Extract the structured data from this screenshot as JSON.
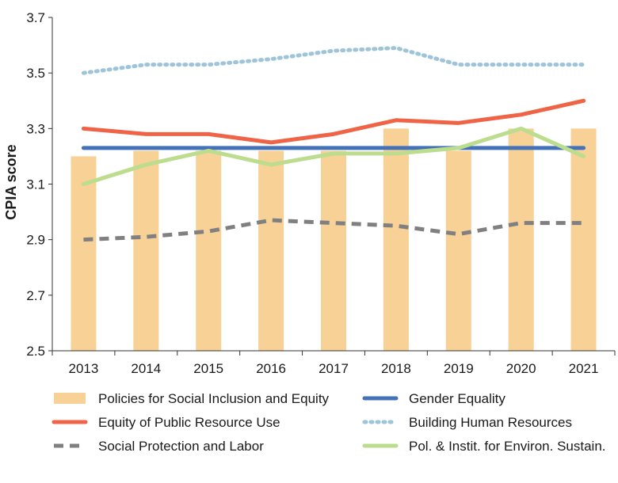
{
  "chart_data": {
    "type": "bar",
    "ylabel": "CPIA score",
    "ylim": [
      2.5,
      3.7
    ],
    "yticks": [
      2.5,
      2.7,
      2.9,
      3.1,
      3.3,
      3.5,
      3.7
    ],
    "categories": [
      "2013",
      "2014",
      "2015",
      "2016",
      "2017",
      "2018",
      "2019",
      "2020",
      "2021"
    ],
    "bar_series": {
      "name": "Policies for Social Inclusion and Equity",
      "color": "#f8d197",
      "values": [
        3.2,
        3.22,
        3.22,
        3.22,
        3.22,
        3.3,
        3.22,
        3.3,
        3.3
      ]
    },
    "line_series": [
      {
        "name": "Gender Equality",
        "color": "#4472b8",
        "style": "solid",
        "values": [
          3.23,
          3.23,
          3.23,
          3.23,
          3.23,
          3.23,
          3.23,
          3.23,
          3.23
        ]
      },
      {
        "name": "Equity of Public Resource Use",
        "color": "#ef6446",
        "style": "solid",
        "values": [
          3.3,
          3.28,
          3.28,
          3.25,
          3.28,
          3.33,
          3.32,
          3.35,
          3.4
        ]
      },
      {
        "name": "Building Human Resources",
        "color": "#9ec4da",
        "style": "dotted",
        "values": [
          3.5,
          3.53,
          3.53,
          3.55,
          3.58,
          3.59,
          3.53,
          3.53,
          3.53
        ]
      },
      {
        "name": "Social Protection and Labor",
        "color": "#808080",
        "style": "dashed",
        "values": [
          2.9,
          2.91,
          2.93,
          2.97,
          2.96,
          2.95,
          2.92,
          2.96,
          2.96
        ]
      },
      {
        "name": "Pol. & Instit. for Environ. Sustain.",
        "color": "#bcdc8e",
        "style": "solid",
        "values": [
          3.1,
          3.17,
          3.22,
          3.17,
          3.21,
          3.21,
          3.23,
          3.3,
          3.2
        ]
      }
    ],
    "legend": [
      {
        "label": "Policies for Social Inclusion and Equity",
        "kind": "bar",
        "color": "#f8d197"
      },
      {
        "label": "Gender Equality",
        "kind": "solid",
        "color": "#4472b8"
      },
      {
        "label": "Equity of Public Resource Use",
        "kind": "solid",
        "color": "#ef6446"
      },
      {
        "label": "Building Human Resources",
        "kind": "dotted",
        "color": "#9ec4da"
      },
      {
        "label": "Social Protection and Labor",
        "kind": "dashed",
        "color": "#808080"
      },
      {
        "label": "Pol. & Instit. for Environ. Sustain.",
        "kind": "solid",
        "color": "#bcdc8e"
      }
    ],
    "legend_position": "bottom"
  }
}
